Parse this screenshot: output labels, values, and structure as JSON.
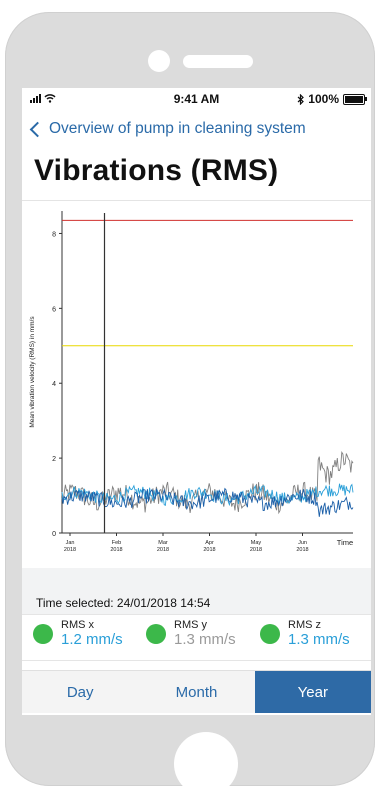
{
  "status_bar": {
    "time": "9:41 AM",
    "battery": "100%"
  },
  "nav": {
    "back_label": "Overview of pump in cleaning system"
  },
  "page": {
    "title": "Vibrations (RMS)"
  },
  "chart_data": {
    "type": "line",
    "ylabel": "Mean vibration velocity (RMS) in mm/s",
    "xlabel": "Time",
    "ylim": [
      0,
      8.6
    ],
    "yticks": [
      "0",
      "2",
      "4",
      "6",
      "8"
    ],
    "xticks": [
      {
        "month": "Jan",
        "year": "2018"
      },
      {
        "month": "Feb",
        "year": "2018"
      },
      {
        "month": "Mar",
        "year": "2018"
      },
      {
        "month": "Apr",
        "year": "2018"
      },
      {
        "month": "May",
        "year": "2018"
      },
      {
        "month": "Jun",
        "year": "2018"
      }
    ],
    "thresholds": [
      {
        "value": 8.35,
        "color": "#d0312d"
      },
      {
        "value": 5.0,
        "color": "#e8d800"
      }
    ],
    "cursor": "24/01/2018",
    "series": [
      {
        "key": "rms-y",
        "color": "#808080"
      },
      {
        "key": "rms-x",
        "color": "#2a9fd8"
      },
      {
        "key": "rms-z",
        "color": "#1b5fa8"
      }
    ],
    "grid": false
  },
  "selection": {
    "label": "Time selected: 24/01/2018 14:54"
  },
  "rms": [
    {
      "label": "RMS x",
      "value": "1.2 mm/s",
      "color": "#2a9fd8"
    },
    {
      "label": "RMS y",
      "value": "1.3 mm/s",
      "color": "#9a9a9a"
    },
    {
      "label": "RMS z",
      "value": "1.3 mm/s",
      "color": "#2a9fd8"
    }
  ],
  "tabs": [
    {
      "label": "Day"
    },
    {
      "label": "Month"
    },
    {
      "label": "Year",
      "active": true
    }
  ]
}
